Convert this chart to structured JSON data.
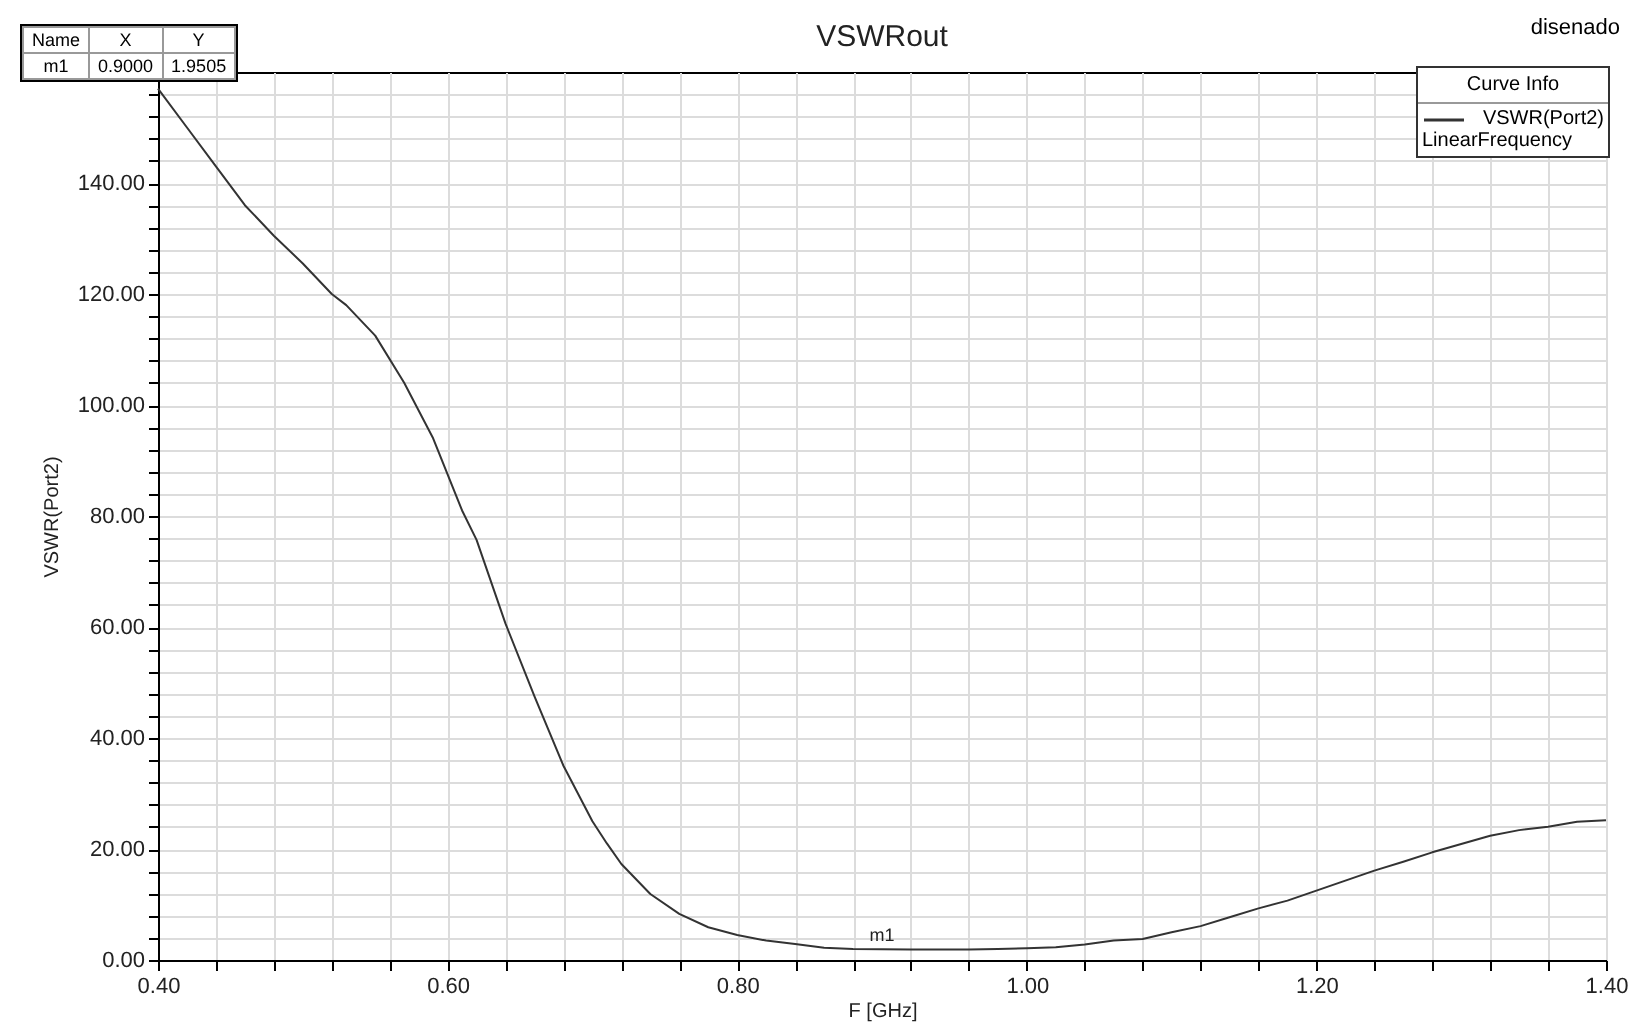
{
  "chart_data": {
    "type": "line",
    "title": "VSWRout",
    "xlabel": "F [GHz]",
    "ylabel": "VSWR(Port2)",
    "legend_title": "Curve Info",
    "x": [
      0.4,
      0.42,
      0.44,
      0.46,
      0.48,
      0.5,
      0.52,
      0.53,
      0.55,
      0.57,
      0.59,
      0.61,
      0.62,
      0.64,
      0.66,
      0.68,
      0.7,
      0.71,
      0.72,
      0.74,
      0.76,
      0.78,
      0.8,
      0.82,
      0.84,
      0.86,
      0.88,
      0.9,
      0.92,
      0.96,
      0.98,
      1.0,
      1.02,
      1.04,
      1.06,
      1.08,
      1.1,
      1.12,
      1.14,
      1.16,
      1.18,
      1.2,
      1.22,
      1.24,
      1.26,
      1.28,
      1.3,
      1.32,
      1.34,
      1.36,
      1.38,
      1.4
    ],
    "series": [
      {
        "name": "VSWR(Port2)",
        "color": "#333333",
        "values": [
          157,
          150,
          143,
          136,
          130.5,
          125.5,
          120,
          118,
          112.5,
          104,
          94,
          81,
          75.7,
          60.6,
          47.5,
          35,
          25,
          21,
          17.3,
          11.9,
          8.3,
          5.9,
          4.5,
          3.5,
          2.9,
          2.2,
          2.0,
          1.9505,
          1.9,
          1.9,
          2.0,
          2.1,
          2.3,
          2.8,
          3.5,
          3.8,
          5.0,
          6.1,
          7.7,
          9.3,
          10.7,
          12.5,
          14.3,
          16.1,
          17.7,
          19.4,
          20.9,
          22.4,
          23.4,
          24.0,
          24.9,
          25.2
        ]
      }
    ],
    "xlim": [
      0.4,
      1.4
    ],
    "xticks": [
      {
        "value": 0.4,
        "label": "0.40"
      },
      {
        "value": 0.44,
        "label": null
      },
      {
        "value": 0.48,
        "label": null
      },
      {
        "value": 0.52,
        "label": null
      },
      {
        "value": 0.56,
        "label": null
      },
      {
        "value": 0.6,
        "label": "0.60"
      },
      {
        "value": 0.64,
        "label": null
      },
      {
        "value": 0.68,
        "label": null
      },
      {
        "value": 0.72,
        "label": null
      },
      {
        "value": 0.76,
        "label": null
      },
      {
        "value": 0.8,
        "label": "0.80"
      },
      {
        "value": 0.84,
        "label": null
      },
      {
        "value": 0.88,
        "label": null
      },
      {
        "value": 0.92,
        "label": null
      },
      {
        "value": 0.96,
        "label": null
      },
      {
        "value": 1.0,
        "label": "1.00"
      },
      {
        "value": 1.04,
        "label": null
      },
      {
        "value": 1.08,
        "label": null
      },
      {
        "value": 1.12,
        "label": null
      },
      {
        "value": 1.16,
        "label": null
      },
      {
        "value": 1.2,
        "label": "1.20"
      },
      {
        "value": 1.24,
        "label": null
      },
      {
        "value": 1.28,
        "label": null
      },
      {
        "value": 1.32,
        "label": null
      },
      {
        "value": 1.36,
        "label": null
      },
      {
        "value": 1.4,
        "label": "1.40"
      }
    ],
    "ylim": [
      0,
      160
    ],
    "yticks": [
      {
        "value": 0,
        "label": "0.00"
      },
      {
        "value": 4,
        "label": null
      },
      {
        "value": 8,
        "label": null
      },
      {
        "value": 12,
        "label": null
      },
      {
        "value": 16,
        "label": null
      },
      {
        "value": 20,
        "label": "20.00"
      },
      {
        "value": 24,
        "label": null
      },
      {
        "value": 28,
        "label": null
      },
      {
        "value": 32,
        "label": null
      },
      {
        "value": 36,
        "label": null
      },
      {
        "value": 40,
        "label": "40.00"
      },
      {
        "value": 44,
        "label": null
      },
      {
        "value": 48,
        "label": null
      },
      {
        "value": 52,
        "label": null
      },
      {
        "value": 56,
        "label": null
      },
      {
        "value": 60,
        "label": "60.00"
      },
      {
        "value": 64,
        "label": null
      },
      {
        "value": 68,
        "label": null
      },
      {
        "value": 72,
        "label": null
      },
      {
        "value": 76,
        "label": null
      },
      {
        "value": 80,
        "label": "80.00"
      },
      {
        "value": 84,
        "label": null
      },
      {
        "value": 88,
        "label": null
      },
      {
        "value": 92,
        "label": null
      },
      {
        "value": 96,
        "label": null
      },
      {
        "value": 100,
        "label": "100.00"
      },
      {
        "value": 104,
        "label": null
      },
      {
        "value": 108,
        "label": null
      },
      {
        "value": 112,
        "label": null
      },
      {
        "value": 116,
        "label": null
      },
      {
        "value": 120,
        "label": "120.00"
      },
      {
        "value": 124,
        "label": null
      },
      {
        "value": 128,
        "label": null
      },
      {
        "value": 132,
        "label": null
      },
      {
        "value": 136,
        "label": null
      },
      {
        "value": 140,
        "label": "140.00"
      },
      {
        "value": 144,
        "label": null
      },
      {
        "value": 148,
        "label": null
      },
      {
        "value": 152,
        "label": null
      },
      {
        "value": 156,
        "label": null
      }
    ],
    "grid": true,
    "legend": "top right",
    "line_style": "solid",
    "marker": "none",
    "annotations": [
      "disenado",
      "LinearFrequency",
      "Name",
      "X",
      "Y",
      "m1",
      "0.9000",
      "1.9505",
      {
        "text": "m1",
        "x": 0.9,
        "y": 1.9505
      }
    ]
  }
}
